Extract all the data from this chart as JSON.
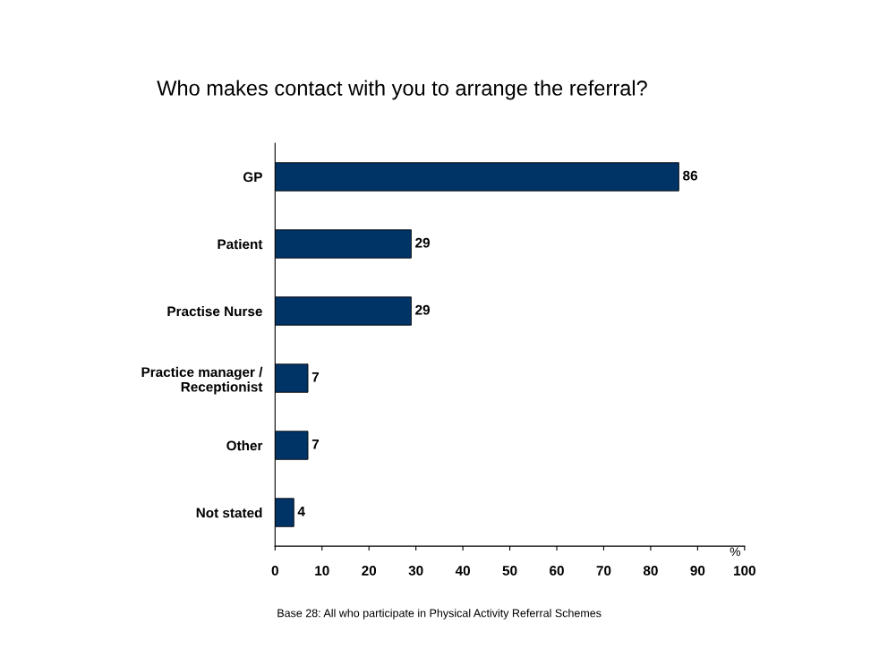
{
  "chart_data": {
    "type": "bar",
    "orientation": "horizontal",
    "title": "Who makes contact with you to arrange the referral?",
    "categories": [
      "GP",
      "Patient",
      "Practise Nurse",
      "Practice manager /\nReceptionist",
      "Other",
      "Not stated"
    ],
    "values": [
      86,
      29,
      29,
      7,
      7,
      4
    ],
    "color": "#003366",
    "xlim": [
      0,
      100
    ],
    "xticks": [
      0,
      10,
      20,
      30,
      40,
      50,
      60,
      70,
      80,
      90,
      100
    ],
    "xlabel": "%",
    "data_labels": true,
    "grid": false,
    "annotations": [
      "Base 28: All who participate in Physical Activity Referral Schemes"
    ]
  }
}
